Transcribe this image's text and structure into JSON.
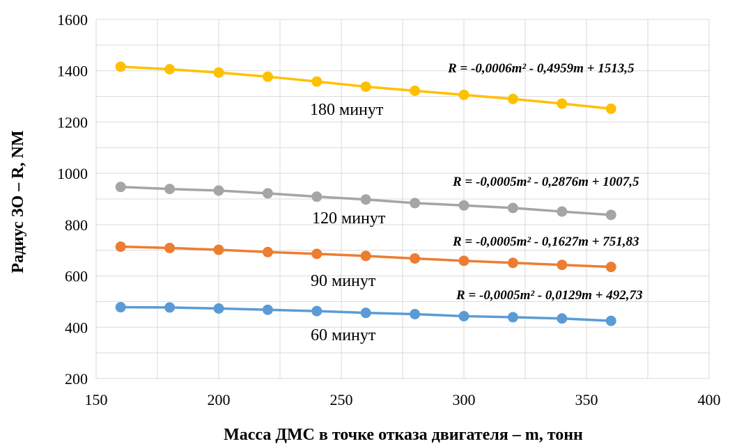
{
  "chart_data": {
    "type": "line",
    "xlabel": "Масса ДМС в точке отказа двигателя – m, тонн",
    "ylabel": "Радиус ЗО – R, NM",
    "xlim": [
      150,
      400
    ],
    "ylim": [
      200,
      1600
    ],
    "xticks": [
      150,
      200,
      250,
      300,
      350,
      400
    ],
    "yticks": [
      200,
      400,
      600,
      800,
      1000,
      1200,
      1400,
      1600
    ],
    "grid": true,
    "x": [
      160,
      180,
      200,
      220,
      240,
      260,
      280,
      300,
      320,
      340,
      360
    ],
    "series": [
      {
        "name": "180 минут",
        "color": "#FFC000",
        "values": [
          1416,
          1406,
          1393,
          1377,
          1358,
          1338,
          1322,
          1306,
          1290,
          1272,
          1252
        ],
        "equation": "R = -0,0006m² - 0,4959m + 1513,5"
      },
      {
        "name": "120 минут",
        "color": "#A5A5A5",
        "values": [
          947,
          939,
          933,
          922,
          909,
          898,
          884,
          875,
          865,
          851,
          838
        ],
        "equation": "R = -0,0005m² - 0,2876m + 1007,5"
      },
      {
        "name": "90 минут",
        "color": "#ED7D31",
        "values": [
          714,
          709,
          702,
          693,
          686,
          678,
          668,
          659,
          651,
          643,
          635
        ],
        "equation": "R = -0,0005m² - 0,1627m + 751,83"
      },
      {
        "name": "60 минут",
        "color": "#5B9BD5",
        "values": [
          478,
          477,
          473,
          468,
          463,
          456,
          451,
          443,
          439,
          434,
          425
        ],
        "equation": "R = -0,0005m² - 0,0129m + 492,73"
      }
    ]
  }
}
